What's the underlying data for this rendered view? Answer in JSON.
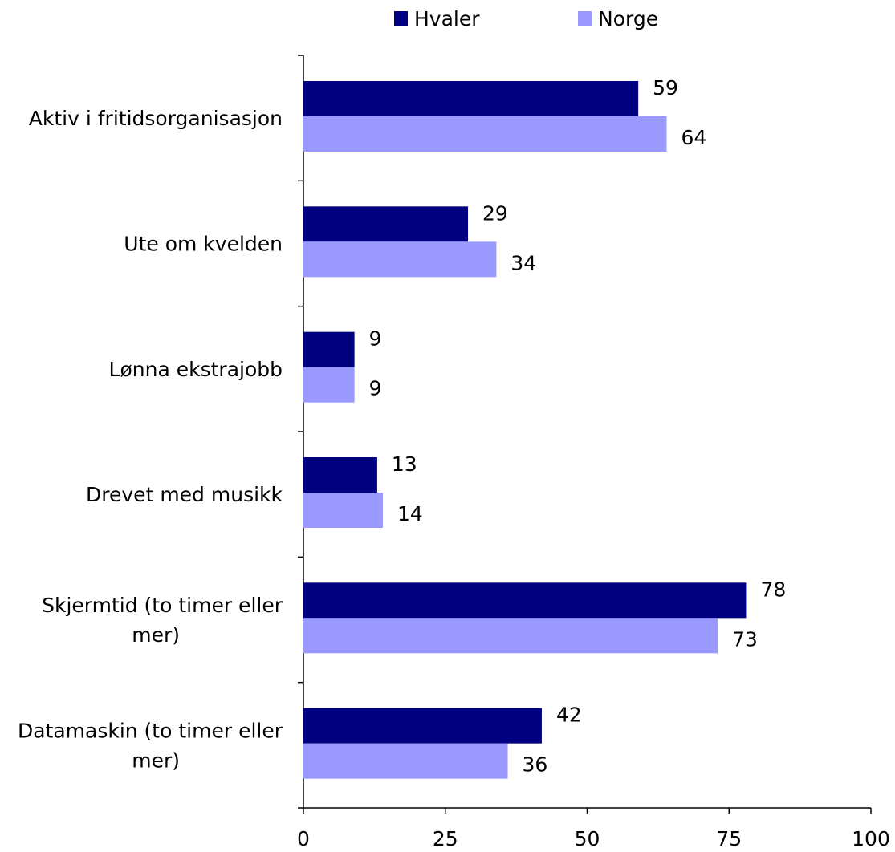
{
  "chart_data": {
    "type": "bar",
    "orientation": "horizontal",
    "title": "",
    "xlabel": "",
    "ylabel": "",
    "categories": [
      [
        "Aktiv i fritidsorganisasjon"
      ],
      [
        "Ute om kvelden"
      ],
      [
        "Lønna ekstrajobb"
      ],
      [
        "Drevet med musikk"
      ],
      [
        "Skjermtid (to timer eller",
        "mer)"
      ],
      [
        "Datamaskin (to timer eller",
        "mer)"
      ]
    ],
    "series": [
      {
        "name": "Hvaler",
        "color": "#000080",
        "values": [
          59,
          29,
          9,
          13,
          78,
          42
        ],
        "labels": [
          "59",
          "29",
          "9",
          "13",
          "78",
          "42"
        ]
      },
      {
        "name": "Norge",
        "color": "#9999ff",
        "values": [
          64,
          34,
          9,
          14,
          73,
          36
        ],
        "labels": [
          "64",
          "34",
          "9",
          "14",
          "73",
          "36"
        ]
      }
    ],
    "x_ticks": [
      0,
      25,
      50,
      75,
      100
    ],
    "x_tick_labels": [
      "0",
      "25",
      "50",
      "75",
      "100"
    ],
    "xlim": [
      0,
      100
    ],
    "grid": false,
    "legend_position": "top"
  }
}
